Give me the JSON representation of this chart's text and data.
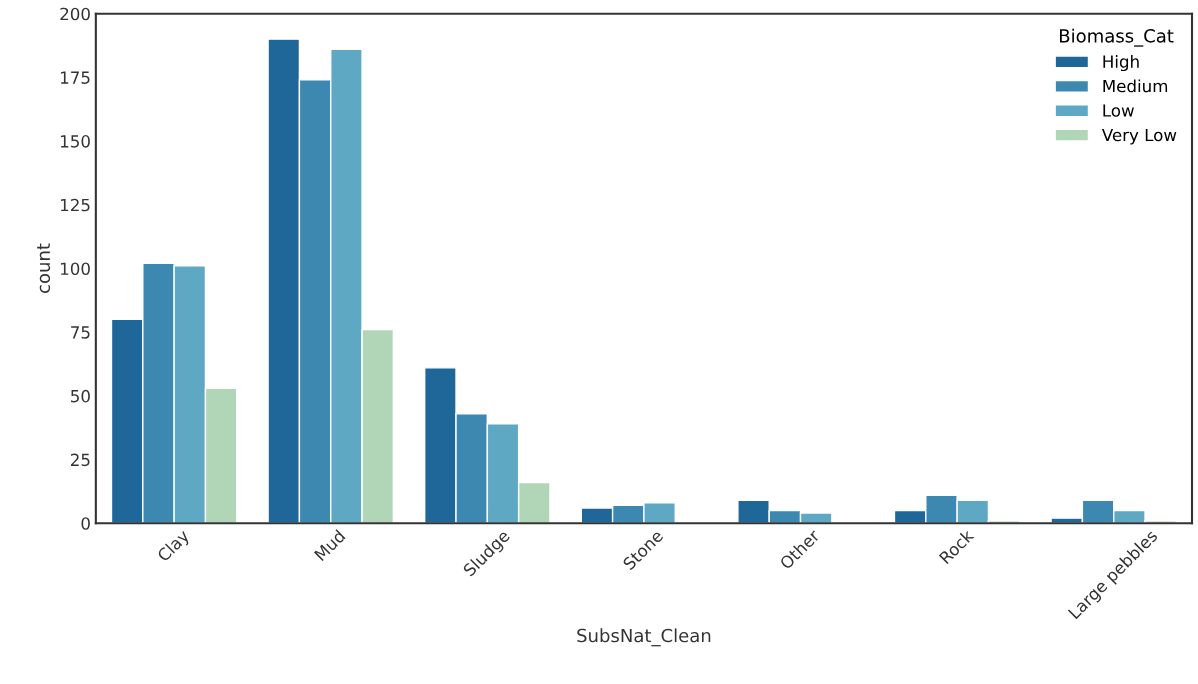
{
  "chart_data": {
    "type": "bar",
    "xlabel": "SubsNat_Clean",
    "ylabel": "count",
    "legend_title": "Biomass_Cat",
    "legend": "top right",
    "grid": false,
    "categories": [
      "Clay",
      "Mud",
      "Sludge",
      "Stone",
      "Other",
      "Rock",
      "Large pebbles"
    ],
    "series": [
      {
        "name": "High",
        "color": "#1f6699",
        "values": [
          80,
          190,
          61,
          6,
          9,
          5,
          2
        ]
      },
      {
        "name": "Medium",
        "color": "#3d88b0",
        "values": [
          102,
          174,
          43,
          7,
          5,
          11,
          9
        ]
      },
      {
        "name": "Low",
        "color": "#5fa8c4",
        "values": [
          101,
          186,
          39,
          8,
          4,
          9,
          5
        ]
      },
      {
        "name": "Very Low",
        "color": "#b0d6b7",
        "values": [
          53,
          76,
          16,
          null,
          null,
          1,
          1
        ]
      }
    ],
    "ylim": [
      0,
      200
    ],
    "yticks": [
      0,
      25,
      50,
      75,
      100,
      125,
      150,
      175,
      200
    ]
  }
}
